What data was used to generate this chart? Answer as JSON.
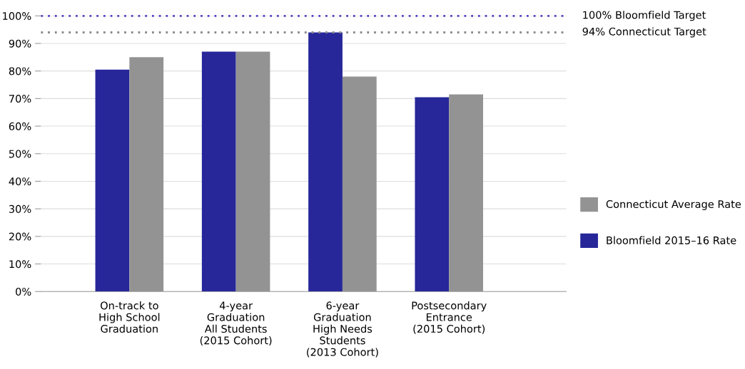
{
  "chart_data": {
    "type": "bar",
    "categories": [
      "On-track to\nHigh School\nGraduation",
      "4-year\nGraduation\nAll Students\n(2015 Cohort)",
      "6-year\nGraduation\nHigh Needs\nStudents\n(2013 Cohort)",
      "Postsecondary\nEntrance\n(2015 Cohort)"
    ],
    "series": [
      {
        "name": "Bloomfield 2015–16 Rate",
        "color": "#27279a",
        "values": [
          80.5,
          87,
          94,
          70.5
        ]
      },
      {
        "name": "Connecticut Average Rate",
        "color": "#939393",
        "values": [
          85,
          87,
          78,
          71.5
        ]
      }
    ],
    "ylim": [
      0,
      100
    ],
    "yticks": [
      {
        "value": 0,
        "label": "0%"
      },
      {
        "value": 10,
        "label": "10%"
      },
      {
        "value": 20,
        "label": "20%"
      },
      {
        "value": 30,
        "label": "30%"
      },
      {
        "value": 40,
        "label": "40%"
      },
      {
        "value": 50,
        "label": "50%"
      },
      {
        "value": 60,
        "label": "60%"
      },
      {
        "value": 70,
        "label": "70%"
      },
      {
        "value": 80,
        "label": "80%"
      },
      {
        "value": 90,
        "label": "90%"
      },
      {
        "value": 100,
        "label": "100%"
      }
    ],
    "grid": "y",
    "legend": "right",
    "ref_lines": [
      {
        "axis": "y",
        "value": 100,
        "label": "100% Bloomfield Target",
        "color": "#5b3fc4",
        "line_style": "dotted"
      },
      {
        "axis": "y",
        "value": 94,
        "label": "94% Connecticut Target",
        "color": "#8a8a8a",
        "line_style": "dotted"
      }
    ]
  }
}
